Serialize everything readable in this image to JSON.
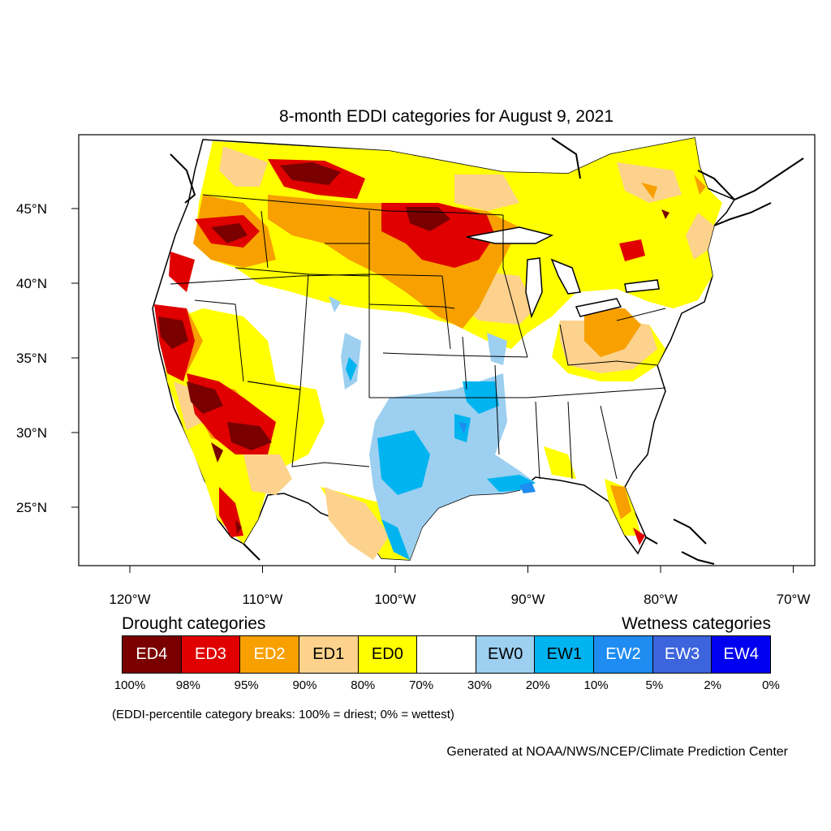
{
  "title": "8-month EDDI categories for August 9, 2021",
  "lat_ticks": [
    {
      "label": "45°N",
      "value": 45
    },
    {
      "label": "40°N",
      "value": 40
    },
    {
      "label": "35°N",
      "value": 35
    },
    {
      "label": "30°N",
      "value": 30
    },
    {
      "label": "25°N",
      "value": 25
    }
  ],
  "lon_ticks": [
    {
      "label": "120°W",
      "value": -120
    },
    {
      "label": "110°W",
      "value": -110
    },
    {
      "label": "100°W",
      "value": -100
    },
    {
      "label": "90°W",
      "value": -90
    },
    {
      "label": "80°W",
      "value": -80
    },
    {
      "label": "70°W",
      "value": -70
    }
  ],
  "legend": {
    "drought_heading": "Drought categories",
    "wetness_heading": "Wetness categories",
    "categories": [
      {
        "label": "ED4",
        "color": "#7a0000",
        "text_color": "#ffffff"
      },
      {
        "label": "ED3",
        "color": "#e00000",
        "text_color": "#ffffff"
      },
      {
        "label": "ED2",
        "color": "#f7a000",
        "text_color": "#ffffff"
      },
      {
        "label": "ED1",
        "color": "#fcd28c",
        "text_color": "#000000"
      },
      {
        "label": "ED0",
        "color": "#ffff00",
        "text_color": "#000000"
      },
      {
        "label": "",
        "color": "#ffffff",
        "text_color": "#000000"
      },
      {
        "label": "EW0",
        "color": "#9ccff0",
        "text_color": "#000000"
      },
      {
        "label": "EW1",
        "color": "#00b4f0",
        "text_color": "#000000"
      },
      {
        "label": "EW2",
        "color": "#1e8cf0",
        "text_color": "#ffffff"
      },
      {
        "label": "EW3",
        "color": "#3c64dc",
        "text_color": "#ffffff"
      },
      {
        "label": "EW4",
        "color": "#0000f0",
        "text_color": "#ffffff"
      }
    ],
    "breaks": [
      "100%",
      "98%",
      "95%",
      "90%",
      "80%",
      "70%",
      "30%",
      "20%",
      "10%",
      "5%",
      "2%",
      "0%"
    ]
  },
  "note": "(EDDI-percentile category breaks: 100% = driest; 0% = wettest)",
  "credit": "Generated at NOAA/NWS/NCEP/Climate Prediction Center"
}
